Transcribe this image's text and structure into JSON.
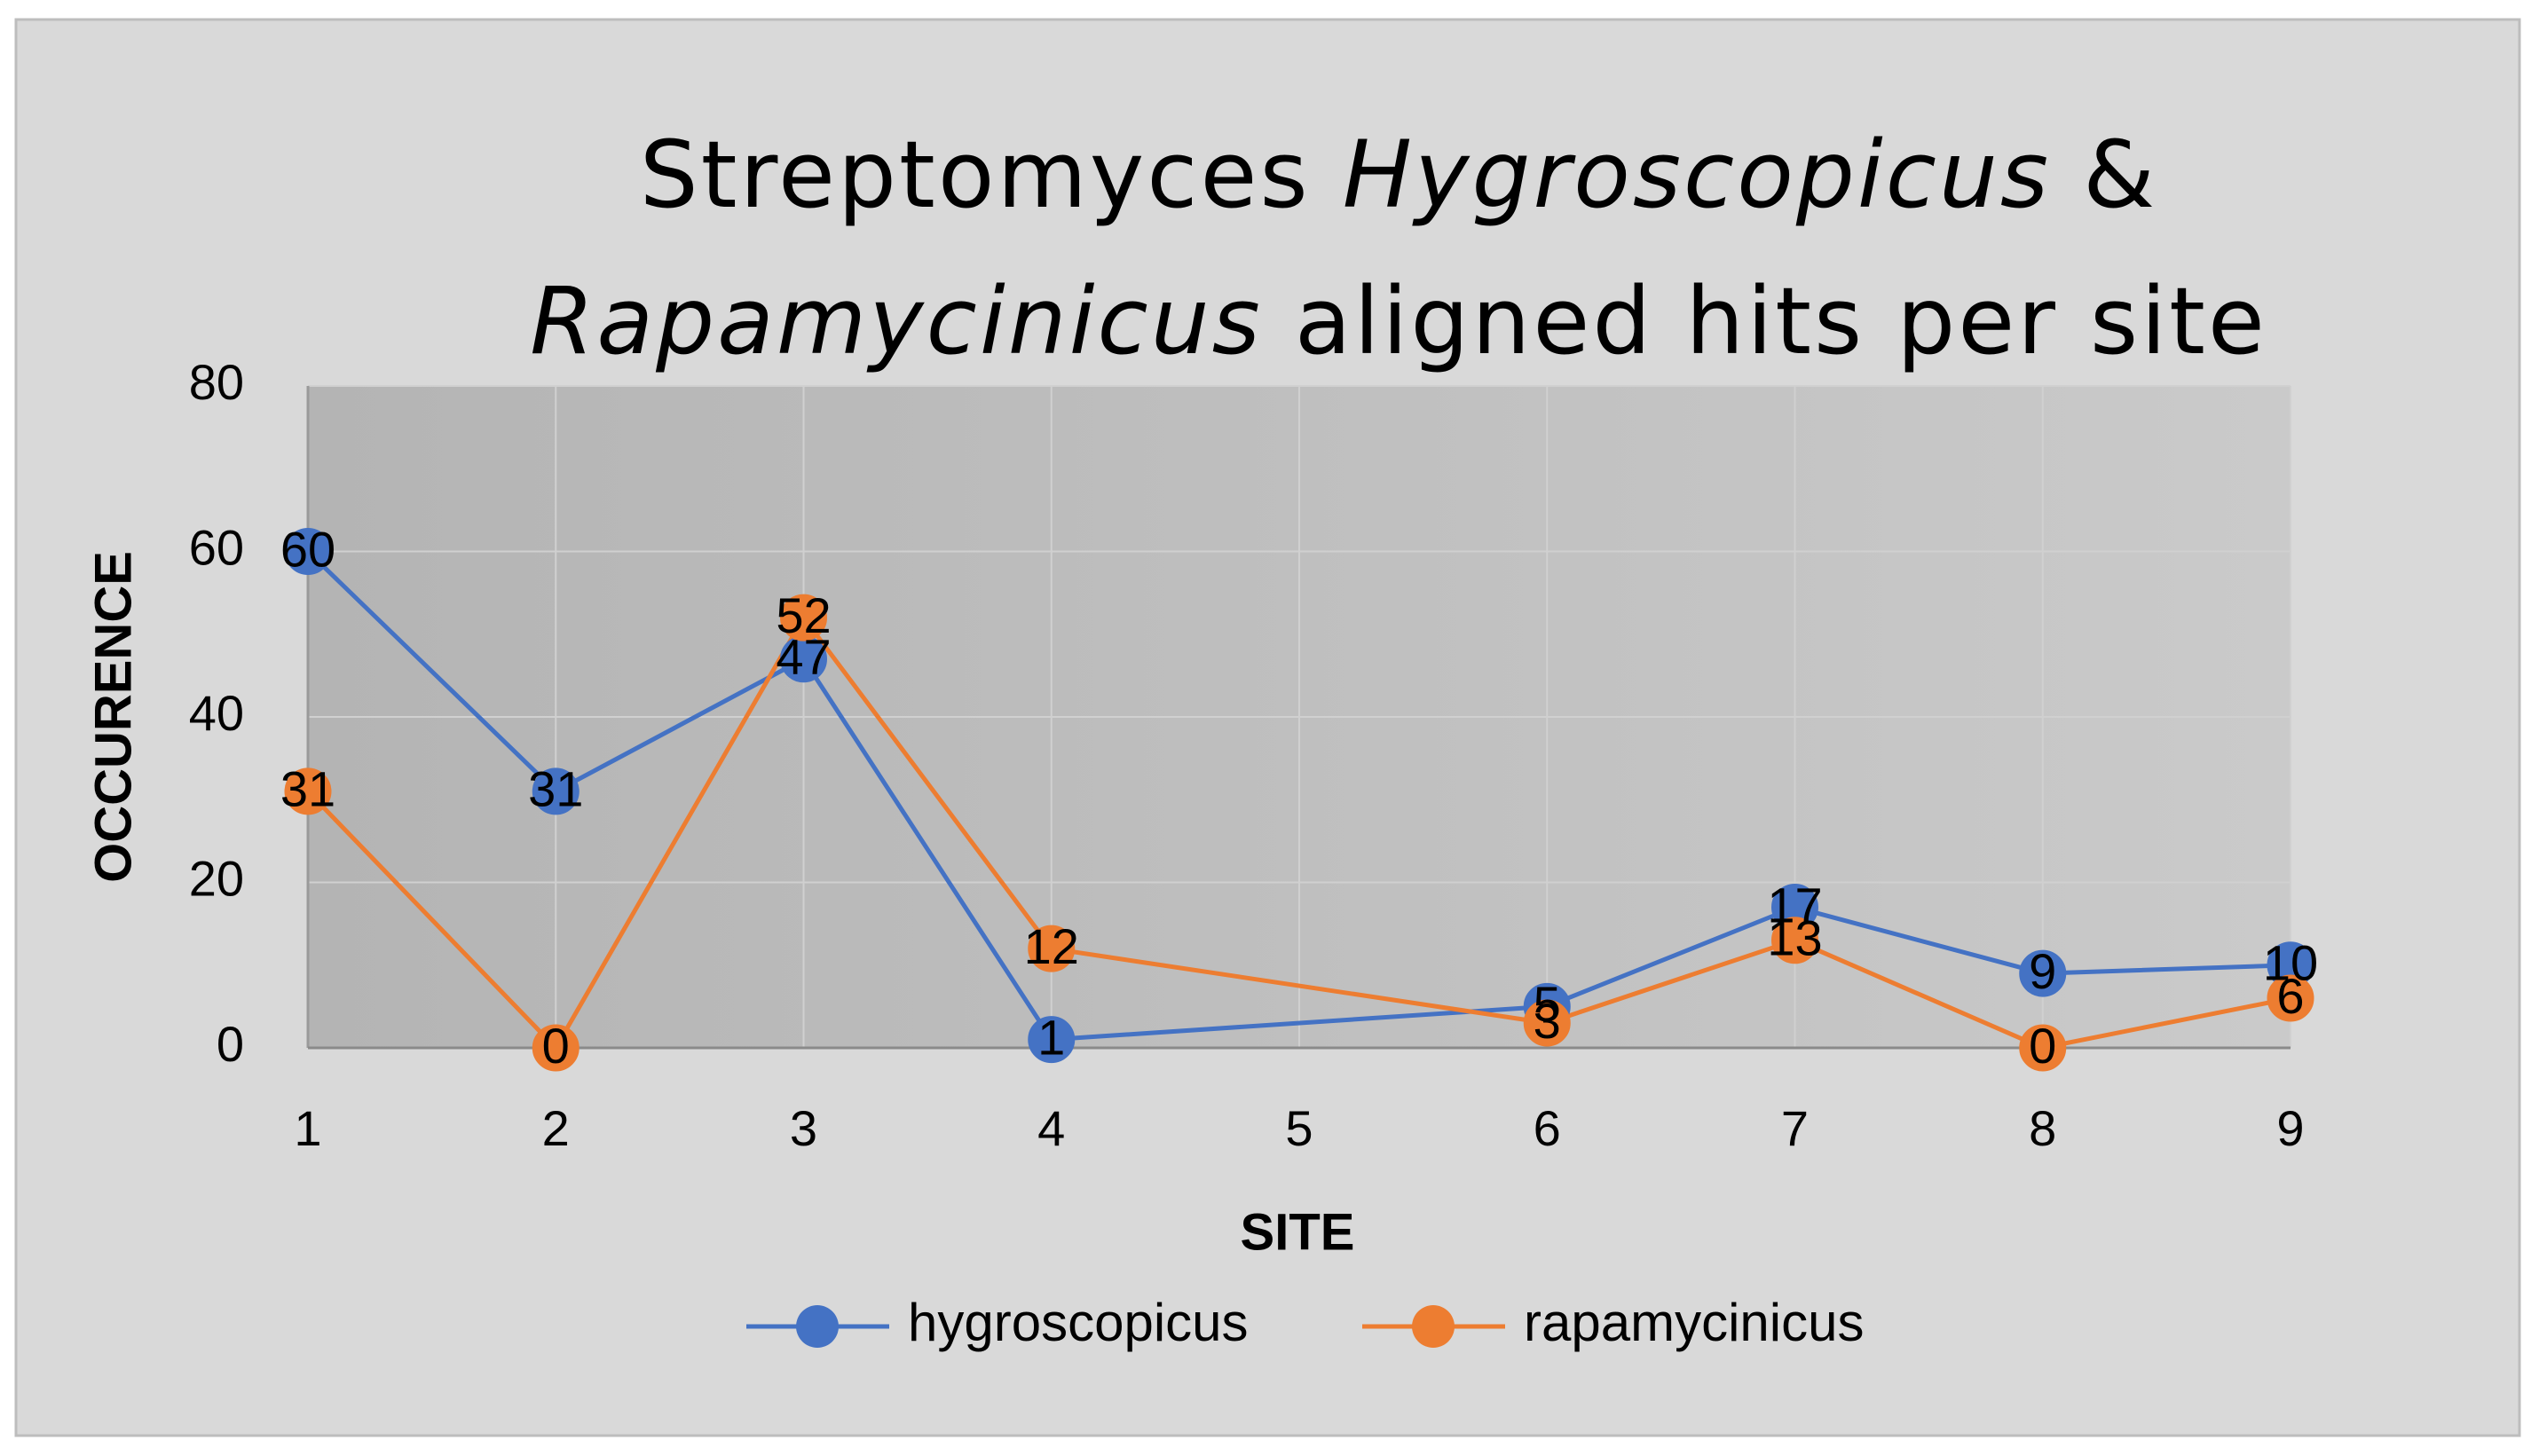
{
  "chart_data": {
    "type": "line",
    "title": [
      [
        {
          "text": "Streptomyces "
        },
        {
          "text": "Hygroscopicus",
          "italic": true
        },
        {
          "text": " &"
        }
      ],
      [
        {
          "text": "Rapamycinicus",
          "italic": true
        },
        {
          "text": " aligned hits per site"
        }
      ]
    ],
    "x_label": "SITE",
    "y_label": "OCCURENCE",
    "x": [
      1,
      2,
      3,
      4,
      6,
      7,
      8,
      9
    ],
    "series": [
      {
        "name": "hygroscopicus",
        "color": "#4472c4",
        "values": [
          60,
          31,
          47,
          1,
          5,
          17,
          9,
          10
        ]
      },
      {
        "name": "rapamycinicus",
        "color": "#ed7d31",
        "values": [
          31,
          0,
          52,
          12,
          3,
          13,
          0,
          6
        ]
      }
    ],
    "xlim": [
      1,
      9
    ],
    "xticks": [
      1,
      2,
      3,
      4,
      5,
      6,
      7,
      8,
      9
    ],
    "ylim": [
      0,
      80
    ],
    "yticks": [
      0,
      20,
      40,
      60,
      80
    ],
    "grid": true,
    "data_labels": true,
    "legend": "bottom"
  }
}
